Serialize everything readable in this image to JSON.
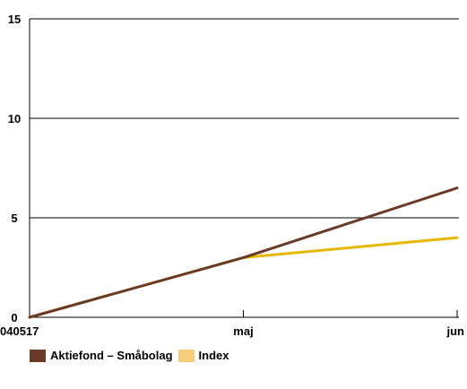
{
  "chart_data": {
    "type": "line",
    "x_labels": [
      "040517",
      "maj",
      "jun"
    ],
    "ylim": [
      0,
      15
    ],
    "yticks": [
      0,
      5,
      10,
      15
    ],
    "grid": true,
    "legend_position": "bottom-left",
    "series": [
      {
        "name": "Aktiefond – Småbolag",
        "color": "#6b3a26",
        "legend_color": "#6b3a26",
        "values": [
          0,
          3.0,
          6.5
        ]
      },
      {
        "name": "Index",
        "color": "#e8b800",
        "legend_color": "#f5cc7a",
        "values": [
          0,
          3.0,
          4.0
        ]
      }
    ]
  }
}
